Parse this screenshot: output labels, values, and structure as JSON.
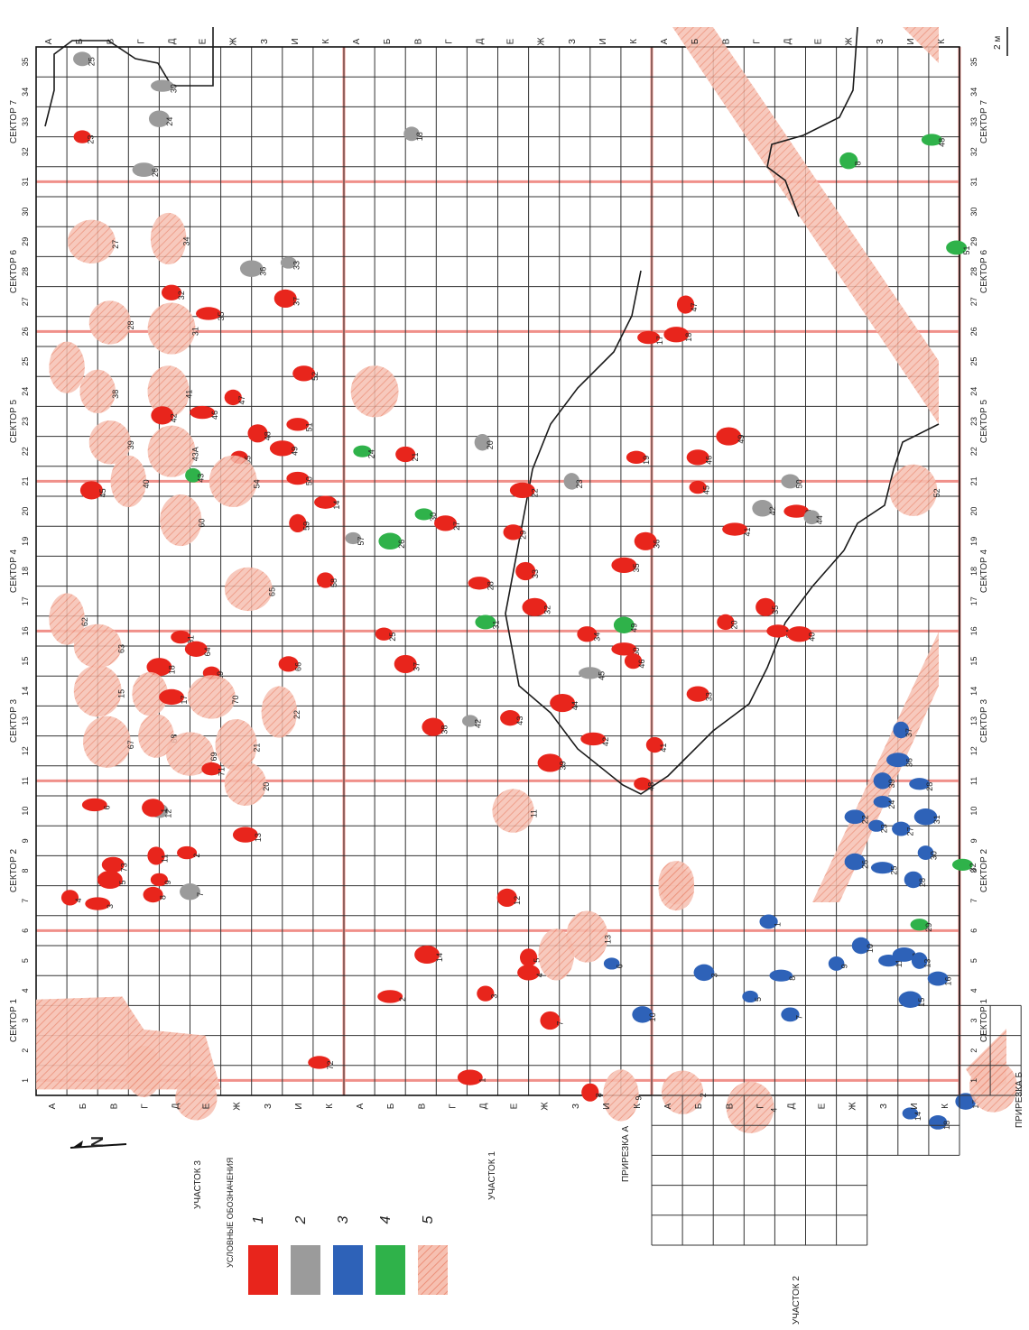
{
  "colors": {
    "red": "#e8251c",
    "gray": "#9b9b9b",
    "blue": "#2e62b8",
    "green": "#2fb24a",
    "pink": "#f3a58f",
    "gridline": "#333333",
    "redline": "#f0908a"
  },
  "rows_top": [
    "А",
    "Б",
    "В",
    "Г",
    "Д",
    "Е",
    "Ж",
    "З",
    "И",
    "К",
    "А",
    "Б",
    "В",
    "Г",
    "Д",
    "Е",
    "Ж",
    "З",
    "И",
    "К",
    "А",
    "Б",
    "В",
    "Г",
    "Д",
    "Е",
    "Ж",
    "З",
    "И",
    "К"
  ],
  "rows_bottom": [
    "А",
    "Б",
    "В",
    "Г",
    "Д",
    "Е",
    "Ж",
    "З",
    "И",
    "К",
    "А",
    "Б",
    "В",
    "Г",
    "Д",
    "Е",
    "Ж",
    "З",
    "И",
    "К",
    "А",
    "Б",
    "В",
    "Г",
    "Д",
    "Е",
    "Ж",
    "З",
    "И",
    "К"
  ],
  "sectors": [
    "СЕКТОР 1",
    "СЕКТОР 2",
    "СЕКТОР 3",
    "СЕКТОР 4",
    "СЕКТОР 5",
    "СЕКТОР 6",
    "СЕКТОР 7"
  ],
  "uchastok1": "УЧАСТОК 1",
  "uchastok2": "УЧАСТОК 2",
  "uchastok3": "УЧАСТОК 3",
  "prirezka_a": "ПРИРЕЗКА А",
  "prirezka_b": "ПРИРЕЗКА Б",
  "scale_label": "2 м",
  "north": "N",
  "legend": {
    "title": "УСЛОВНЫЕ   ОБОЗНАЧЕНИЯ",
    "items": [
      {
        "num": "1",
        "color": "red"
      },
      {
        "num": "2",
        "color": "gray"
      },
      {
        "num": "3",
        "color": "blue"
      },
      {
        "num": "4",
        "color": "green"
      },
      {
        "num": "5",
        "color": "pink"
      }
    ]
  },
  "features": [
    {
      "c": "red",
      "n": "23",
      "x": 1.0,
      "y": 32.5
    },
    {
      "c": "gray",
      "n": "25",
      "x": 1.0,
      "y": 35.1
    },
    {
      "c": "gray",
      "n": "24",
      "x": 3.5,
      "y": 33.1
    },
    {
      "c": "gray",
      "n": "30",
      "x": 3.6,
      "y": 34.2
    },
    {
      "c": "gray",
      "n": "18",
      "x": 11.7,
      "y": 32.6
    },
    {
      "c": "green",
      "n": "8",
      "x": 25.9,
      "y": 31.7
    },
    {
      "c": "green",
      "n": "48",
      "x": 28.6,
      "y": 32.4
    },
    {
      "c": "gray",
      "n": "26",
      "x": 3.0,
      "y": 31.4
    },
    {
      "c": "pink",
      "n": "27",
      "x": 1.3,
      "y": 29.0
    },
    {
      "c": "pink",
      "n": "34",
      "x": 3.8,
      "y": 29.1
    },
    {
      "c": "green",
      "n": "51",
      "x": 29.4,
      "y": 28.8
    },
    {
      "c": "gray",
      "n": "36",
      "x": 6.5,
      "y": 28.1
    },
    {
      "c": "gray",
      "n": "33",
      "x": 7.7,
      "y": 28.3
    },
    {
      "c": "red",
      "n": "32",
      "x": 3.9,
      "y": 27.3
    },
    {
      "c": "red",
      "n": "37",
      "x": 7.6,
      "y": 27.1
    },
    {
      "c": "red",
      "n": "35",
      "x": 5.1,
      "y": 26.6
    },
    {
      "c": "pink",
      "n": "28",
      "x": 1.9,
      "y": 26.3
    },
    {
      "c": "pink",
      "n": "31",
      "x": 3.9,
      "y": 26.1
    },
    {
      "c": "red",
      "n": "17",
      "x": 19.4,
      "y": 25.8
    },
    {
      "c": "red",
      "n": "18",
      "x": 20.3,
      "y": 25.9
    },
    {
      "c": "red",
      "n": "47",
      "x": 20.6,
      "y": 26.9
    },
    {
      "c": "pink",
      "n": "",
      "x": 0.5,
      "y": 24.8
    },
    {
      "c": "red",
      "n": "52",
      "x": 8.2,
      "y": 24.6
    },
    {
      "c": "pink",
      "n": "",
      "x": 10.5,
      "y": 24.0
    },
    {
      "c": "pink",
      "n": "38",
      "x": 1.5,
      "y": 24.0
    },
    {
      "c": "pink",
      "n": "41",
      "x": 3.8,
      "y": 24.0
    },
    {
      "c": "red",
      "n": "42",
      "x": 3.6,
      "y": 23.2
    },
    {
      "c": "red",
      "n": "46",
      "x": 4.9,
      "y": 23.3
    },
    {
      "c": "red",
      "n": "47",
      "x": 5.9,
      "y": 23.8
    },
    {
      "c": "red",
      "n": "48",
      "x": 6.7,
      "y": 22.6
    },
    {
      "c": "red",
      "n": "51",
      "x": 8.0,
      "y": 22.9
    },
    {
      "c": "red",
      "n": "49",
      "x": 7.5,
      "y": 22.1
    },
    {
      "c": "gray",
      "n": "20",
      "x": 14.0,
      "y": 22.3
    },
    {
      "c": "green",
      "n": "24",
      "x": 10.1,
      "y": 22.0
    },
    {
      "c": "pink",
      "n": "39",
      "x": 1.9,
      "y": 22.3
    },
    {
      "c": "pink",
      "n": "43А",
      "x": 3.9,
      "y": 22.0
    },
    {
      "c": "red",
      "n": "55",
      "x": 6.1,
      "y": 21.8
    },
    {
      "c": "red",
      "n": "21",
      "x": 11.5,
      "y": 21.9
    },
    {
      "c": "red",
      "n": "45",
      "x": 1.3,
      "y": 20.7
    },
    {
      "c": "pink",
      "n": "40",
      "x": 2.5,
      "y": 21.0
    },
    {
      "c": "green",
      "n": "43",
      "x": 4.6,
      "y": 21.2
    },
    {
      "c": "pink",
      "n": "54",
      "x": 5.9,
      "y": 21.0
    },
    {
      "c": "red",
      "n": "50",
      "x": 8.0,
      "y": 21.1
    },
    {
      "c": "red",
      "n": "22",
      "x": 15.3,
      "y": 20.7
    },
    {
      "c": "gray",
      "n": "23",
      "x": 16.9,
      "y": 21.0
    },
    {
      "c": "red",
      "n": "19",
      "x": 19.0,
      "y": 21.8
    },
    {
      "c": "red",
      "n": "46",
      "x": 21.0,
      "y": 21.8
    },
    {
      "c": "red",
      "n": "49",
      "x": 22.0,
      "y": 22.5
    },
    {
      "c": "red",
      "n": "45",
      "x": 21.0,
      "y": 20.8
    },
    {
      "c": "gray",
      "n": "50",
      "x": 24.0,
      "y": 21.0
    },
    {
      "c": "gray",
      "n": "42",
      "x": 23.1,
      "y": 20.1
    },
    {
      "c": "red",
      "n": "43",
      "x": 24.2,
      "y": 20.0
    },
    {
      "c": "gray",
      "n": "44",
      "x": 24.7,
      "y": 19.8
    },
    {
      "c": "pink",
      "n": "52",
      "x": 28.0,
      "y": 20.7
    },
    {
      "c": "red",
      "n": "14",
      "x": 8.9,
      "y": 20.3
    },
    {
      "c": "pink",
      "n": "60",
      "x": 4.2,
      "y": 19.7
    },
    {
      "c": "red",
      "n": "59",
      "x": 8.0,
      "y": 19.6
    },
    {
      "c": "green",
      "n": "30",
      "x": 12.1,
      "y": 19.9
    },
    {
      "c": "red",
      "n": "27",
      "x": 12.8,
      "y": 19.6
    },
    {
      "c": "green",
      "n": "26",
      "x": 11.0,
      "y": 19.0
    },
    {
      "c": "gray",
      "n": "57",
      "x": 9.8,
      "y": 19.1
    },
    {
      "c": "red",
      "n": "29",
      "x": 15.0,
      "y": 19.3
    },
    {
      "c": "red",
      "n": "36",
      "x": 19.3,
      "y": 19.0
    },
    {
      "c": "red",
      "n": "41",
      "x": 22.2,
      "y": 19.4
    },
    {
      "c": "red",
      "n": "58",
      "x": 8.9,
      "y": 17.7
    },
    {
      "c": "red",
      "n": "33",
      "x": 15.4,
      "y": 18.0
    },
    {
      "c": "red",
      "n": "28",
      "x": 13.9,
      "y": 17.6
    },
    {
      "c": "red",
      "n": "35",
      "x": 18.6,
      "y": 18.2
    },
    {
      "c": "pink",
      "n": "65",
      "x": 6.4,
      "y": 17.4
    },
    {
      "c": "pink",
      "n": "62",
      "x": 0.5,
      "y": 16.4
    },
    {
      "c": "green",
      "n": "31",
      "x": 14.1,
      "y": 16.3
    },
    {
      "c": "red",
      "n": "32",
      "x": 15.7,
      "y": 16.8
    },
    {
      "c": "red",
      "n": "25",
      "x": 10.8,
      "y": 15.9
    },
    {
      "c": "red",
      "n": "34",
      "x": 17.4,
      "y": 15.9
    },
    {
      "c": "green",
      "n": "49",
      "x": 18.6,
      "y": 16.2
    },
    {
      "c": "red",
      "n": "50",
      "x": 18.6,
      "y": 15.4
    },
    {
      "c": "red",
      "n": "20",
      "x": 21.9,
      "y": 16.3
    },
    {
      "c": "red",
      "n": "35",
      "x": 23.2,
      "y": 16.8
    },
    {
      "c": "red",
      "n": "34",
      "x": 23.6,
      "y": 16.0
    },
    {
      "c": "red",
      "n": "40",
      "x": 24.3,
      "y": 15.9
    },
    {
      "c": "pink",
      "n": "63",
      "x": 1.5,
      "y": 15.5
    },
    {
      "c": "red",
      "n": "61",
      "x": 4.2,
      "y": 15.8
    },
    {
      "c": "red",
      "n": "64",
      "x": 4.7,
      "y": 15.4
    },
    {
      "c": "red",
      "n": "18",
      "x": 3.5,
      "y": 14.8
    },
    {
      "c": "red",
      "n": "19",
      "x": 5.2,
      "y": 14.6
    },
    {
      "c": "red",
      "n": "66",
      "x": 7.7,
      "y": 14.9
    },
    {
      "c": "red",
      "n": "37",
      "x": 11.5,
      "y": 14.9
    },
    {
      "c": "gray",
      "n": "45",
      "x": 17.5,
      "y": 14.6
    },
    {
      "c": "red",
      "n": "46",
      "x": 18.9,
      "y": 15.0
    },
    {
      "c": "pink",
      "n": "15",
      "x": 1.5,
      "y": 14.0
    },
    {
      "c": "pink",
      "n": "16",
      "x": 3.2,
      "y": 13.9
    },
    {
      "c": "red",
      "n": "17",
      "x": 3.9,
      "y": 13.8
    },
    {
      "c": "pink",
      "n": "70",
      "x": 5.2,
      "y": 13.8
    },
    {
      "c": "pink",
      "n": "22",
      "x": 7.4,
      "y": 13.3
    },
    {
      "c": "red",
      "n": "33",
      "x": 21.0,
      "y": 13.9
    },
    {
      "c": "red",
      "n": "44",
      "x": 16.6,
      "y": 13.6
    },
    {
      "c": "gray",
      "n": "42",
      "x": 13.6,
      "y": 13.0
    },
    {
      "c": "red",
      "n": "43",
      "x": 14.9,
      "y": 13.1
    },
    {
      "c": "red",
      "n": "38",
      "x": 12.4,
      "y": 12.8
    },
    {
      "c": "red",
      "n": "42",
      "x": 17.6,
      "y": 12.4
    },
    {
      "c": "red",
      "n": "41",
      "x": 19.6,
      "y": 12.2
    },
    {
      "c": "pink",
      "n": "67",
      "x": 1.8,
      "y": 12.3
    },
    {
      "c": "pink",
      "n": "68",
      "x": 3.4,
      "y": 12.5
    },
    {
      "c": "pink",
      "n": "21",
      "x": 6.0,
      "y": 12.2
    },
    {
      "c": "pink",
      "n": "69",
      "x": 4.5,
      "y": 11.9
    },
    {
      "c": "red",
      "n": "71",
      "x": 5.2,
      "y": 11.4
    },
    {
      "c": "pink",
      "n": "20",
      "x": 6.3,
      "y": 10.9
    },
    {
      "c": "red",
      "n": "39",
      "x": 16.2,
      "y": 11.6
    },
    {
      "c": "red",
      "n": "48",
      "x": 19.2,
      "y": 10.9
    },
    {
      "c": "gray",
      "n": "12",
      "x": 3.5,
      "y": 10.0
    },
    {
      "c": "red",
      "n": "1",
      "x": 3.3,
      "y": 10.1
    },
    {
      "c": "red",
      "n": "6",
      "x": 1.4,
      "y": 10.2
    },
    {
      "c": "pink",
      "n": "11",
      "x": 15.0,
      "y": 10.0
    },
    {
      "c": "blue",
      "n": "39",
      "x": 27.0,
      "y": 11.0
    },
    {
      "c": "blue",
      "n": "28",
      "x": 28.2,
      "y": 10.9
    },
    {
      "c": "blue",
      "n": "36",
      "x": 27.5,
      "y": 11.7
    },
    {
      "c": "blue",
      "n": "37",
      "x": 27.6,
      "y": 12.7
    },
    {
      "c": "blue",
      "n": "24",
      "x": 27.0,
      "y": 10.3
    },
    {
      "c": "blue",
      "n": "22",
      "x": 26.1,
      "y": 9.8
    },
    {
      "c": "blue",
      "n": "31",
      "x": 28.4,
      "y": 9.8
    },
    {
      "c": "blue",
      "n": "23",
      "x": 26.8,
      "y": 9.5
    },
    {
      "c": "blue",
      "n": "27",
      "x": 27.6,
      "y": 9.4
    },
    {
      "c": "blue",
      "n": "26",
      "x": 26.1,
      "y": 8.3
    },
    {
      "c": "blue",
      "n": "25",
      "x": 27.0,
      "y": 8.1
    },
    {
      "c": "blue",
      "n": "30",
      "x": 28.4,
      "y": 8.6
    },
    {
      "c": "blue",
      "n": "28",
      "x": 28.0,
      "y": 7.7
    },
    {
      "c": "green",
      "n": "32",
      "x": 29.6,
      "y": 8.2
    },
    {
      "c": "red",
      "n": "13",
      "x": 6.3,
      "y": 9.2
    },
    {
      "c": "red",
      "n": "11",
      "x": 3.4,
      "y": 8.5
    },
    {
      "c": "red",
      "n": "2",
      "x": 4.4,
      "y": 8.6
    },
    {
      "c": "red",
      "n": "73",
      "x": 2.0,
      "y": 8.2
    },
    {
      "c": "red",
      "n": "5",
      "x": 1.9,
      "y": 7.7
    },
    {
      "c": "red",
      "n": "9",
      "x": 3.5,
      "y": 7.7
    },
    {
      "c": "red",
      "n": "8",
      "x": 3.3,
      "y": 7.2
    },
    {
      "c": "gray",
      "n": "7",
      "x": 4.5,
      "y": 7.3
    },
    {
      "c": "red",
      "n": "3",
      "x": 1.5,
      "y": 6.9
    },
    {
      "c": "red",
      "n": "4",
      "x": 0.6,
      "y": 7.1
    },
    {
      "c": "red",
      "n": "12",
      "x": 14.8,
      "y": 7.1
    },
    {
      "c": "pink",
      "n": "",
      "x": 20.3,
      "y": 7.6
    },
    {
      "c": "pink",
      "n": "13",
      "x": 17.4,
      "y": 5.8
    },
    {
      "c": "red",
      "n": "5",
      "x": 15.5,
      "y": 5.1
    },
    {
      "c": "pink",
      "n": "",
      "x": 16.4,
      "y": 5.2
    },
    {
      "c": "red",
      "n": "4",
      "x": 15.5,
      "y": 4.6
    },
    {
      "c": "red",
      "n": "14",
      "x": 12.2,
      "y": 5.2
    },
    {
      "c": "blue",
      "n": "6",
      "x": 18.2,
      "y": 4.9
    },
    {
      "c": "blue",
      "n": "1",
      "x": 23.3,
      "y": 6.3
    },
    {
      "c": "blue",
      "n": "3",
      "x": 21.2,
      "y": 4.6
    },
    {
      "c": "blue",
      "n": "8",
      "x": 23.7,
      "y": 4.5
    },
    {
      "c": "blue",
      "n": "9",
      "x": 25.5,
      "y": 4.9
    },
    {
      "c": "blue",
      "n": "10",
      "x": 26.3,
      "y": 5.5
    },
    {
      "c": "blue",
      "n": "11",
      "x": 27.2,
      "y": 5.0
    },
    {
      "c": "blue",
      "n": "12",
      "x": 27.7,
      "y": 5.2
    },
    {
      "c": "blue",
      "n": "13",
      "x": 28.2,
      "y": 5.0
    },
    {
      "c": "green",
      "n": "29",
      "x": 28.2,
      "y": 6.2
    },
    {
      "c": "blue",
      "n": "16",
      "x": 28.8,
      "y": 4.4
    },
    {
      "c": "blue",
      "n": "15",
      "x": 27.9,
      "y": 3.7
    },
    {
      "c": "blue",
      "n": "5",
      "x": 22.7,
      "y": 3.8
    },
    {
      "c": "blue",
      "n": "7",
      "x": 24.0,
      "y": 3.2
    },
    {
      "c": "blue",
      "n": "10",
      "x": 19.2,
      "y": 3.2
    },
    {
      "c": "red",
      "n": "2",
      "x": 11.0,
      "y": 3.8
    },
    {
      "c": "red",
      "n": "3",
      "x": 14.1,
      "y": 3.9
    },
    {
      "c": "red",
      "n": "7",
      "x": 16.2,
      "y": 3.0
    },
    {
      "c": "red",
      "n": "72",
      "x": 8.7,
      "y": 1.6
    },
    {
      "c": "red",
      "n": "1",
      "x": 13.6,
      "y": 1.1
    },
    {
      "c": "red",
      "n": "8",
      "x": 17.5,
      "y": 0.6
    },
    {
      "c": "pink",
      "n": "9",
      "x": 18.5,
      "y": 0.5
    },
    {
      "c": "pink",
      "n": "2",
      "x": 20.5,
      "y": 0.6
    },
    {
      "c": "pink",
      "n": "4",
      "x": 22.7,
      "y": 0.1
    },
    {
      "c": "blue",
      "n": "14",
      "x": 27.9,
      "y": -0.1
    },
    {
      "c": "blue",
      "n": "18",
      "x": 28.8,
      "y": -0.4
    },
    {
      "c": "blue",
      "n": "17",
      "x": 29.7,
      "y": 0.3
    },
    {
      "c": "pink",
      "n": "",
      "x": 3.0,
      "y": 1.3
    },
    {
      "c": "pink",
      "n": "",
      "x": 4.7,
      "y": 0.4
    },
    {
      "c": "pink",
      "n": "",
      "x": 30.6,
      "y": 0.8
    },
    {
      "c": "pink",
      "n": "",
      "x": 20.3,
      "y": 7.4
    }
  ]
}
